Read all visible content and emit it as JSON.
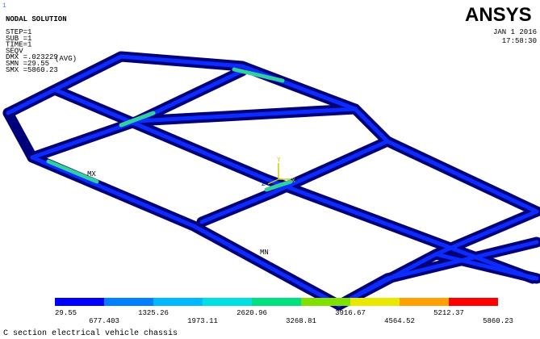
{
  "window_number": "1",
  "header": {
    "title": "NODAL SOLUTION",
    "lines": [
      "STEP=1",
      "SUB =1",
      "TIME=1",
      "SEQV",
      "DMX =.023229",
      "SMN =29.55",
      "SMX =5860.23"
    ],
    "avg": "(AVG)"
  },
  "logo": "ANSYS",
  "date": "JAN  1 2016",
  "time": "17:58:30",
  "markers": {
    "max": "MX",
    "min": "MN"
  },
  "axes": {
    "x": "X",
    "y": "Y",
    "z": "Z"
  },
  "legend": {
    "labels": [
      "29.55",
      "677.403",
      "1325.26",
      "1973.11",
      "2620.96",
      "3268.81",
      "3916.67",
      "4564.52",
      "5212.37",
      "5860.23"
    ],
    "colors": [
      "#0000ff",
      "#0080ff",
      "#00b8ff",
      "#00e0e0",
      "#00e080",
      "#80e000",
      "#e8e800",
      "#ffa000",
      "#ff0000"
    ]
  },
  "footer": "C section electrical vehicle chassis"
}
